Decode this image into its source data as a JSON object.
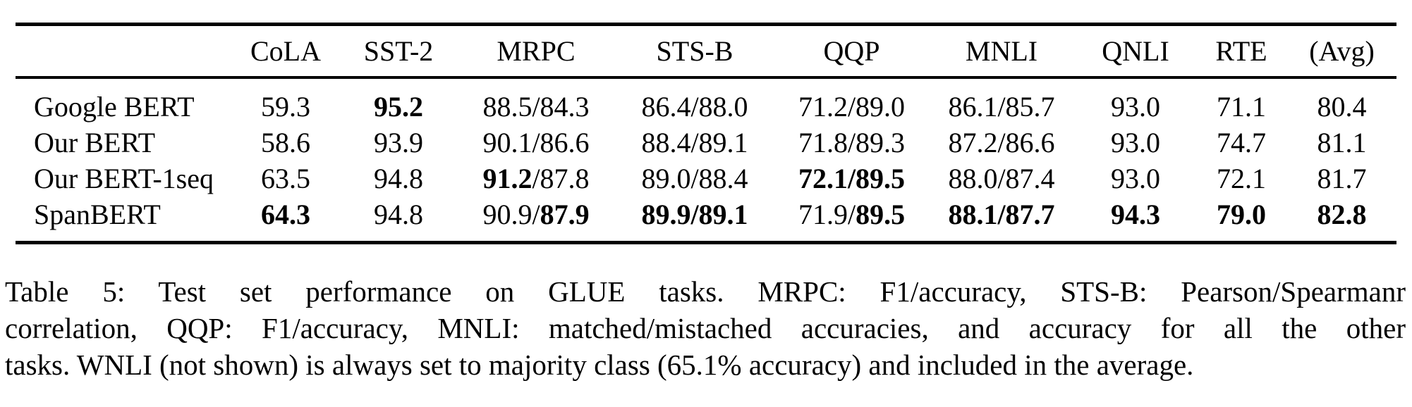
{
  "page": {
    "background_color": "#ffffff",
    "text_color": "#000000"
  },
  "table": {
    "title": "Table 5",
    "headers": [
      "",
      "CoLA",
      "SST-2",
      "MRPC",
      "STS-B",
      "QQP",
      "MNLI",
      "QNLI",
      "RTE",
      "(Avg)"
    ],
    "rows": [
      {
        "model": "Google BERT",
        "cells": [
          [
            {
              "text": "59.3",
              "bold": false
            }
          ],
          [
            {
              "text": "95.2",
              "bold": true
            }
          ],
          [
            {
              "text": "88.5/84.3",
              "bold": false
            }
          ],
          [
            {
              "text": "86.4/88.0",
              "bold": false
            }
          ],
          [
            {
              "text": "71.2/89.0",
              "bold": false
            }
          ],
          [
            {
              "text": "86.1/85.7",
              "bold": false
            }
          ],
          [
            {
              "text": "93.0",
              "bold": false
            }
          ],
          [
            {
              "text": "71.1",
              "bold": false
            }
          ],
          [
            {
              "text": "80.4",
              "bold": false
            }
          ]
        ]
      },
      {
        "model": "Our BERT",
        "cells": [
          [
            {
              "text": "58.6",
              "bold": false
            }
          ],
          [
            {
              "text": "93.9",
              "bold": false
            }
          ],
          [
            {
              "text": "90.1/86.6",
              "bold": false
            }
          ],
          [
            {
              "text": "88.4/89.1",
              "bold": false
            }
          ],
          [
            {
              "text": "71.8/89.3",
              "bold": false
            }
          ],
          [
            {
              "text": "87.2/86.6",
              "bold": false
            }
          ],
          [
            {
              "text": "93.0",
              "bold": false
            }
          ],
          [
            {
              "text": "74.7",
              "bold": false
            }
          ],
          [
            {
              "text": "81.1",
              "bold": false
            }
          ]
        ]
      },
      {
        "model": "Our BERT-1seq",
        "cells": [
          [
            {
              "text": "63.5",
              "bold": false
            }
          ],
          [
            {
              "text": "94.8",
              "bold": false
            }
          ],
          [
            {
              "text": "91.2",
              "bold": true
            },
            {
              "text": "/87.8",
              "bold": false
            }
          ],
          [
            {
              "text": "89.0/88.4",
              "bold": false
            }
          ],
          [
            {
              "text": "72.1/89.5",
              "bold": true
            }
          ],
          [
            {
              "text": "88.0/87.4",
              "bold": false
            }
          ],
          [
            {
              "text": "93.0",
              "bold": false
            }
          ],
          [
            {
              "text": "72.1",
              "bold": false
            }
          ],
          [
            {
              "text": "81.7",
              "bold": false
            }
          ]
        ]
      },
      {
        "model": "SpanBERT",
        "cells": [
          [
            {
              "text": "64.3",
              "bold": true
            }
          ],
          [
            {
              "text": "94.8",
              "bold": false
            }
          ],
          [
            {
              "text": "90.9/",
              "bold": false
            },
            {
              "text": "87.9",
              "bold": true
            }
          ],
          [
            {
              "text": "89.9/89.1",
              "bold": true
            }
          ],
          [
            {
              "text": "71.9/",
              "bold": false
            },
            {
              "text": "89.5",
              "bold": true
            }
          ],
          [
            {
              "text": "88.1/87.7",
              "bold": true
            }
          ],
          [
            {
              "text": "94.3",
              "bold": true
            }
          ],
          [
            {
              "text": "79.0",
              "bold": true
            }
          ],
          [
            {
              "text": "82.8",
              "bold": true
            }
          ]
        ]
      }
    ]
  },
  "caption": {
    "lines": [
      "Table 5: Test set performance on GLUE tasks. MRPC: F1/accuracy, STS-B: Pearson/Spearmanr",
      "correlation, QQP: F1/accuracy, MNLI: matched/mistached accuracies, and accuracy for all the other",
      "tasks. WNLI (not shown) is always set to majority class (65.1% accuracy) and included in the average."
    ]
  }
}
